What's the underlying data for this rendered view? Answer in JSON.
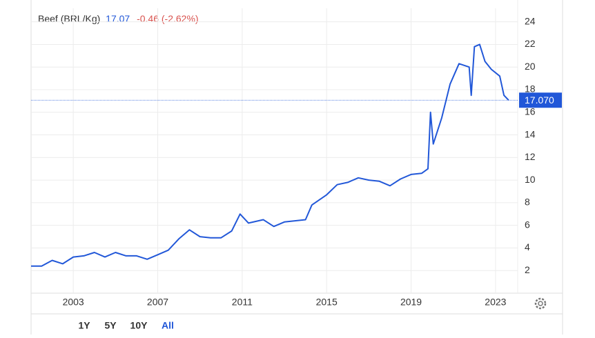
{
  "chart_data": {
    "type": "line",
    "header": {
      "name": "Beef (BRL/Kg)",
      "price": "17.07",
      "change": "-0.46 (-2.62%)"
    },
    "current": {
      "value": 17.07,
      "label": "17.070"
    },
    "series": [
      {
        "name": "Beef (BRL/Kg)",
        "color": "#2157d8",
        "x": [
          2001.0,
          2001.5,
          2002.0,
          2002.5,
          2003.0,
          2003.5,
          2004.0,
          2004.5,
          2005.0,
          2005.5,
          2006.0,
          2006.5,
          2007.0,
          2007.5,
          2008.0,
          2008.5,
          2009.0,
          2009.5,
          2010.0,
          2010.5,
          2010.9,
          2011.3,
          2012.0,
          2012.5,
          2013.0,
          2013.5,
          2014.0,
          2014.3,
          2015.0,
          2015.5,
          2016.0,
          2016.5,
          2017.0,
          2017.5,
          2018.0,
          2018.5,
          2019.0,
          2019.5,
          2019.8,
          2019.92,
          2020.05,
          2020.45,
          2020.85,
          2021.27,
          2021.75,
          2021.85,
          2022.0,
          2022.25,
          2022.5,
          2022.8,
          2023.2,
          2023.4,
          2023.62
        ],
        "values": [
          2.4,
          2.4,
          2.9,
          2.6,
          3.2,
          3.3,
          3.6,
          3.2,
          3.6,
          3.3,
          3.3,
          3.0,
          3.4,
          3.8,
          4.8,
          5.6,
          5.0,
          4.9,
          4.9,
          5.5,
          7.0,
          6.2,
          6.5,
          5.9,
          6.3,
          6.4,
          6.5,
          7.8,
          8.7,
          9.6,
          9.8,
          10.2,
          10.0,
          9.9,
          9.5,
          10.1,
          10.5,
          10.6,
          11.0,
          16.0,
          13.2,
          15.5,
          18.5,
          20.3,
          20.0,
          17.5,
          21.8,
          22.0,
          20.5,
          19.8,
          19.2,
          17.5,
          17.07
        ]
      }
    ],
    "xlim": [
      2001.0,
      2024.05
    ],
    "xticks": [
      2003,
      2007,
      2011,
      2015,
      2019,
      2023
    ],
    "ylim": [
      0,
      25.2
    ],
    "yticks": [
      2,
      4,
      6,
      8,
      10,
      12,
      14,
      16,
      18,
      20,
      22,
      24
    ],
    "grid": true,
    "ranges": [
      "1Y",
      "5Y",
      "10Y",
      "All"
    ]
  }
}
